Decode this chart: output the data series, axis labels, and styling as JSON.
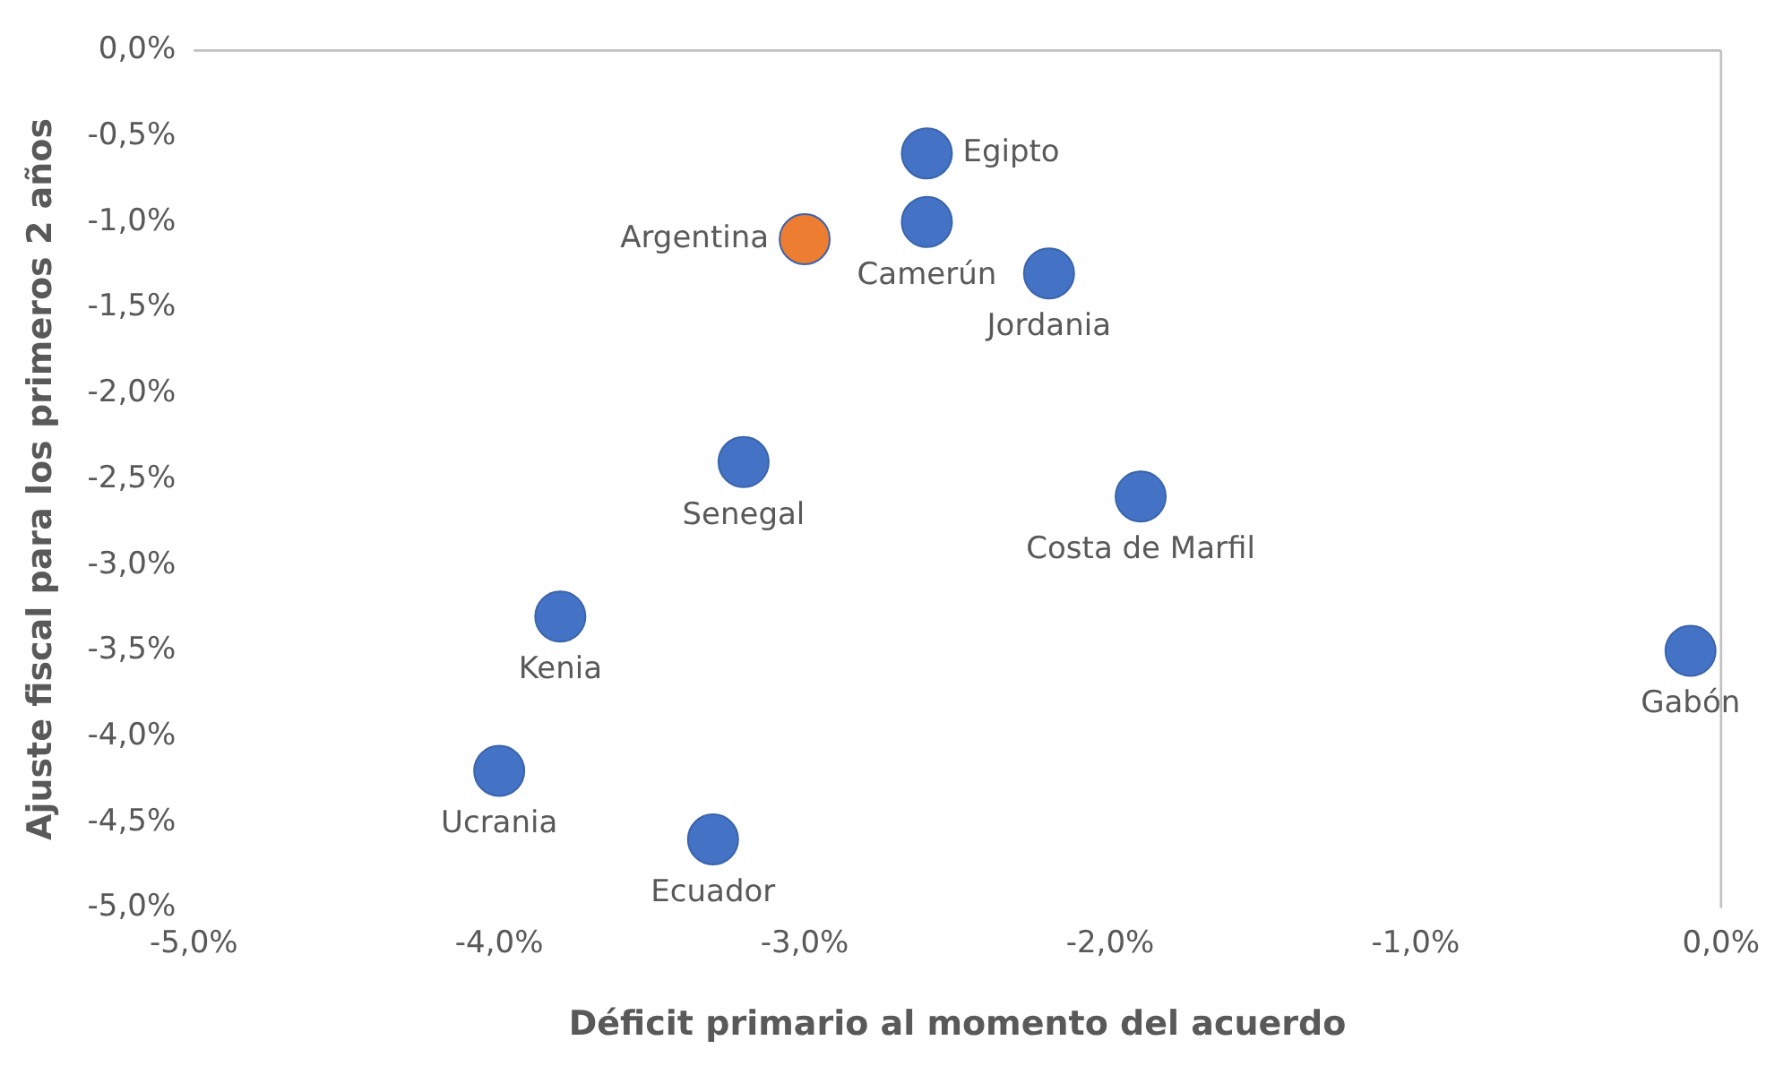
{
  "chart_data": {
    "type": "scatter",
    "xlabel": "Déficit primario al momento del acuerdo",
    "ylabel": "Ajuste fiscal para los primeros 2 años",
    "xlim": [
      -5,
      0
    ],
    "ylim": [
      -5,
      0
    ],
    "xticks": [
      {
        "value": -5,
        "label": "-5,0%"
      },
      {
        "value": -4,
        "label": "-4,0%"
      },
      {
        "value": -3,
        "label": "-3,0%"
      },
      {
        "value": -2,
        "label": "-2,0%"
      },
      {
        "value": -1,
        "label": "-1,0%"
      },
      {
        "value": 0,
        "label": "0,0%"
      }
    ],
    "yticks": [
      {
        "value": 0,
        "label": "0,0%"
      },
      {
        "value": -0.5,
        "label": "-0,5%"
      },
      {
        "value": -1,
        "label": "-1,0%"
      },
      {
        "value": -1.5,
        "label": "-1,5%"
      },
      {
        "value": -2,
        "label": "-2,0%"
      },
      {
        "value": -2.5,
        "label": "-2,5%"
      },
      {
        "value": -3,
        "label": "-3,0%"
      },
      {
        "value": -3.5,
        "label": "-3,5%"
      },
      {
        "value": -4,
        "label": "-4,0%"
      },
      {
        "value": -4.5,
        "label": "-4,5%"
      },
      {
        "value": -5,
        "label": "-5,0%"
      }
    ],
    "grid": false,
    "legend": false,
    "marker": "circle",
    "series": [
      {
        "name": "Egipto",
        "color": "#4472c4",
        "x": [
          -2.6
        ],
        "values": [
          -0.6
        ]
      },
      {
        "name": "Camerún",
        "color": "#4472c4",
        "x": [
          -2.6
        ],
        "values": [
          -1.0
        ]
      },
      {
        "name": "Argentina",
        "color": "#ed7d31",
        "x": [
          -3.0
        ],
        "values": [
          -1.1
        ]
      },
      {
        "name": "Jordania",
        "color": "#4472c4",
        "x": [
          -2.2
        ],
        "values": [
          -1.3
        ]
      },
      {
        "name": "Senegal",
        "color": "#4472c4",
        "x": [
          -3.2
        ],
        "values": [
          -2.4
        ]
      },
      {
        "name": "Costa de Marfil",
        "color": "#4472c4",
        "x": [
          -1.9
        ],
        "values": [
          -2.6
        ]
      },
      {
        "name": "Kenia",
        "color": "#4472c4",
        "x": [
          -3.8
        ],
        "values": [
          -3.3
        ]
      },
      {
        "name": "Gabón",
        "color": "#4472c4",
        "x": [
          -0.1
        ],
        "values": [
          -3.5
        ]
      },
      {
        "name": "Ucrania",
        "color": "#4472c4",
        "x": [
          -4.0
        ],
        "values": [
          -4.2
        ]
      },
      {
        "name": "Ecuador",
        "color": "#4472c4",
        "x": [
          -3.3
        ],
        "values": [
          -4.6
        ]
      }
    ]
  }
}
